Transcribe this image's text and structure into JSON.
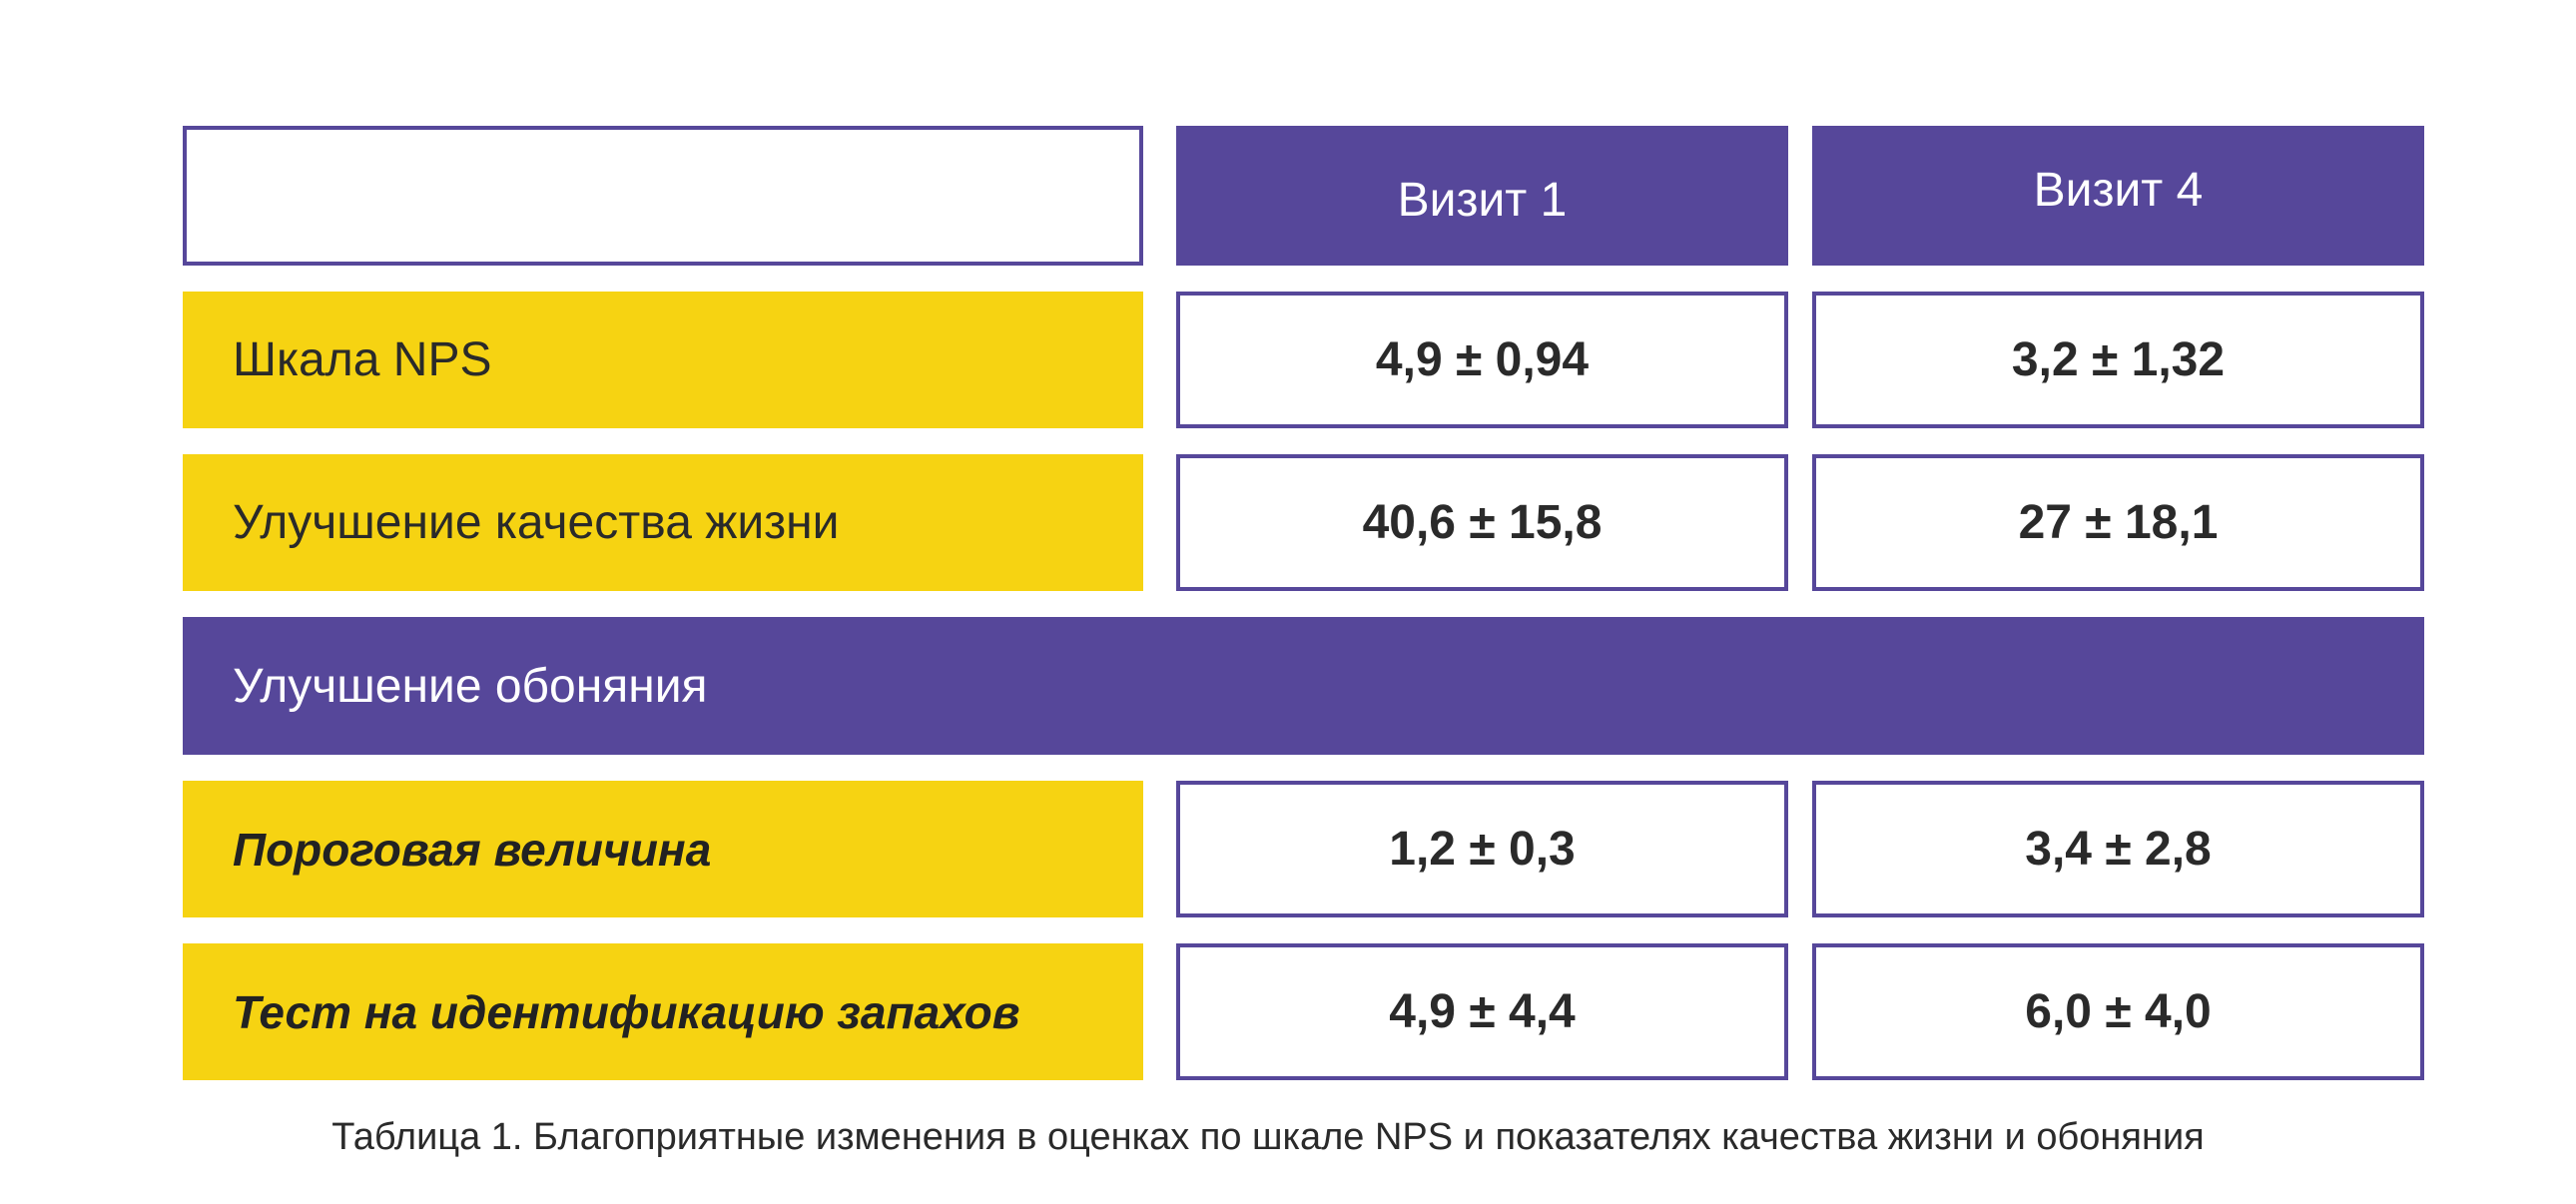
{
  "chart_data": {
    "type": "table",
    "columns": [
      "",
      "Визит 1",
      "Визит 4"
    ],
    "rows": [
      {
        "label": "Шкала NPS",
        "style": "normal",
        "values": [
          "4,9 ± 0,94",
          "3,2 ± 1,32"
        ]
      },
      {
        "label": "Улучшение качества жизни",
        "style": "normal",
        "values": [
          "40,6 ± 15,8",
          "27 ± 18,1"
        ]
      },
      {
        "label": "Улучшение обоняния",
        "style": "section",
        "values": []
      },
      {
        "label": "Пороговая величина",
        "style": "italic",
        "values": [
          "1,2 ± 0,3",
          "3,4 ± 2,8"
        ]
      },
      {
        "label": "Тест на идентификацию запахов",
        "style": "italic",
        "values": [
          "4,9 ± 4,4",
          "6,0 ± 4,0"
        ]
      }
    ],
    "caption": "Таблица 1. Благоприятные изменения в оценках по шкале NPS и показателях качества жизни и обоняния"
  },
  "colors": {
    "purple": "#56479a",
    "yellow": "#f6d312",
    "text": "#2a2a2a"
  }
}
